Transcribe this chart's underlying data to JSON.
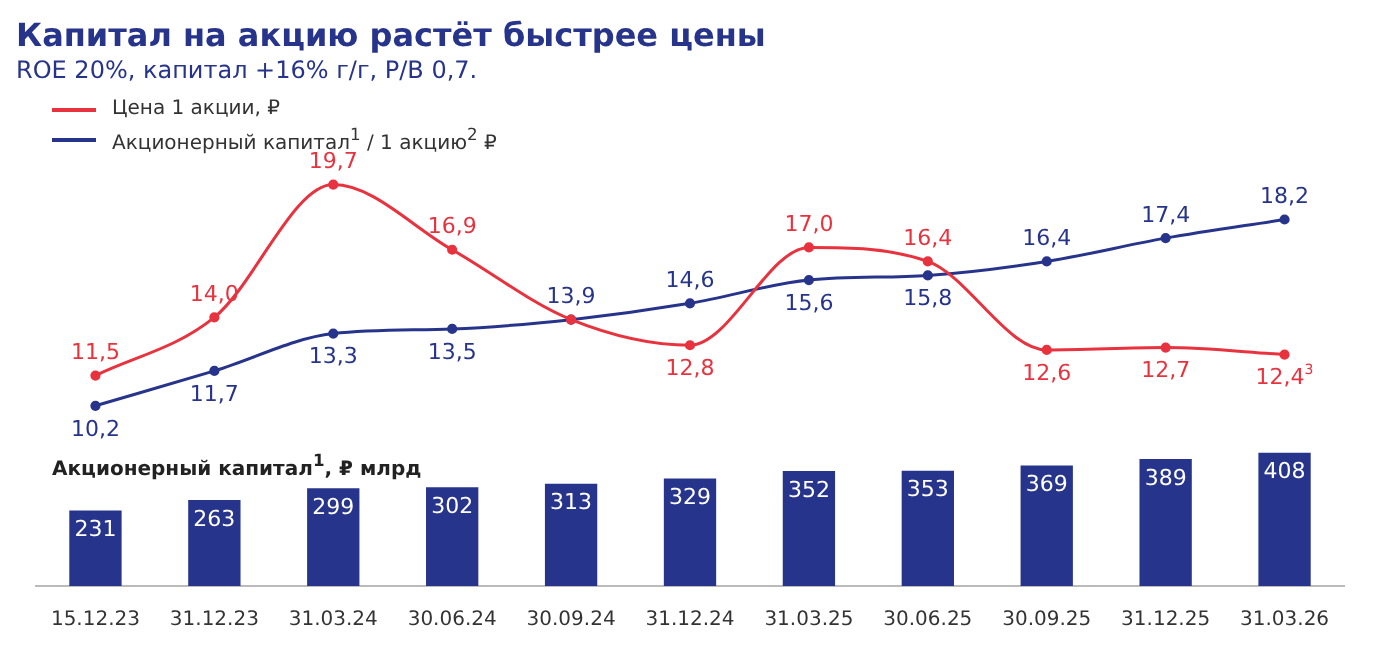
{
  "chart_data": [
    {
      "type": "line",
      "title": "Капитал на акцию растёт быстрее цены",
      "subtitle": "ROE 20%, капитал +16% г/г, P/B 0,7.",
      "categories": [
        "15.12.23",
        "31.12.23",
        "31.03.24",
        "30.06.24",
        "30.09.24",
        "31.12.24",
        "31.03.25",
        "30.06.25",
        "30.09.25",
        "31.12.25",
        "31.03.26"
      ],
      "series": [
        {
          "name": "Цена 1 акции, ₽",
          "color": "#e8333f",
          "values": [
            11.5,
            14.0,
            19.7,
            16.9,
            13.9,
            12.8,
            17.0,
            16.4,
            12.6,
            12.7,
            12.4
          ],
          "value_labels": [
            "11,5",
            "14,0",
            "19,7",
            "16,9",
            null,
            "12,8",
            "17,0",
            "16,4",
            "12,6",
            "12,7",
            "12,4$^{3}$"
          ]
        },
        {
          "name": "Акционерный капитал$^{1}$ / 1 акцию$^{2}$ ₽",
          "color": "#27348b",
          "values": [
            10.2,
            11.7,
            13.3,
            13.5,
            13.9,
            14.6,
            15.6,
            15.8,
            16.4,
            17.4,
            18.2
          ],
          "value_labels": [
            "10,2",
            "11,7",
            "13,3",
            "13,5",
            "13,9",
            "14,6",
            "15,6",
            "15,8",
            "16,4",
            "17,4",
            "18,2"
          ]
        }
      ],
      "legend": "top left",
      "tick_labels": false,
      "marker": "circle"
    },
    {
      "type": "bar",
      "title": "Акционерный капитал$^{1}$, ₽ млрд",
      "categories": [
        "15.12.23",
        "31.12.23",
        "31.03.24",
        "30.06.24",
        "30.09.24",
        "31.12.24",
        "31.03.25",
        "30.06.25",
        "30.09.25",
        "31.12.25",
        "31.03.26"
      ],
      "values": [
        231,
        263,
        299,
        302,
        313,
        329,
        352,
        353,
        369,
        389,
        408
      ],
      "color": "#27348b",
      "data_labels": true
    }
  ]
}
